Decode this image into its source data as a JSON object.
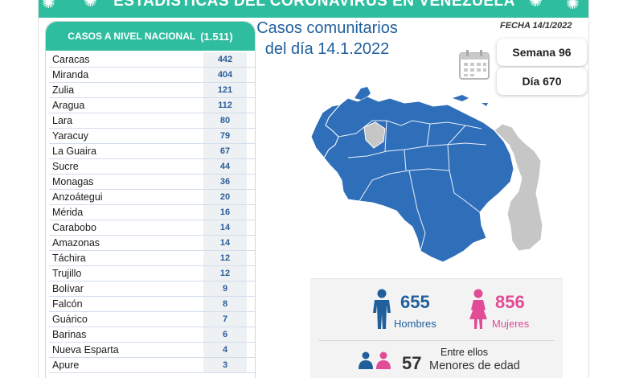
{
  "banner": {
    "title": "ESTADÍSTICAS DEL CORONAVIRUS EN VENEZUELA"
  },
  "national": {
    "title": "CASOS A NIVEL NACIONAL",
    "total": "(1.511)"
  },
  "rows": [
    {
      "name": "Caracas",
      "value": "442"
    },
    {
      "name": "Miranda",
      "value": "404"
    },
    {
      "name": "Zulia",
      "value": "121"
    },
    {
      "name": "Aragua",
      "value": "112"
    },
    {
      "name": "Lara",
      "value": "80"
    },
    {
      "name": "Yaracuy",
      "value": "79"
    },
    {
      "name": "La Guaira",
      "value": "67"
    },
    {
      "name": "Sucre",
      "value": "44"
    },
    {
      "name": "Monagas",
      "value": "36"
    },
    {
      "name": "Anzoátegui",
      "value": "20"
    },
    {
      "name": "Mérida",
      "value": "16"
    },
    {
      "name": "Carabobo",
      "value": "14"
    },
    {
      "name": "Amazonas",
      "value": "14"
    },
    {
      "name": "Táchira",
      "value": "12"
    },
    {
      "name": "Trujillo",
      "value": "12"
    },
    {
      "name": "Bolívar",
      "value": "9"
    },
    {
      "name": "Falcón",
      "value": "8"
    },
    {
      "name": "Guárico",
      "value": "7"
    },
    {
      "name": "Barinas",
      "value": "6"
    },
    {
      "name": "Nueva Esparta",
      "value": "4"
    },
    {
      "name": "Apure",
      "value": "3"
    }
  ],
  "headline": {
    "line1": "Casos comunitarios",
    "line2": "del día 14.1.2022"
  },
  "fecha": "FECHA 14/1/2022",
  "semana": "Semana 96",
  "dia": "Día 670",
  "stats": {
    "hombres_count": "655",
    "hombres_label": "Hombres",
    "mujeres_count": "856",
    "mujeres_label": "Mujeres",
    "entre": "Entre ellos",
    "menores_count": "57",
    "menores_label": "Menores de edad"
  },
  "colors": {
    "banner": "#2fbd9f",
    "map": "#2f6fba",
    "map_grey": "#c6c6c6",
    "male": "#1f5f9c",
    "female": "#e24b96",
    "row_value": "#2b5d98"
  },
  "icons": [
    "virus-icon",
    "calendar-icon",
    "man-icon",
    "woman-icon"
  ]
}
